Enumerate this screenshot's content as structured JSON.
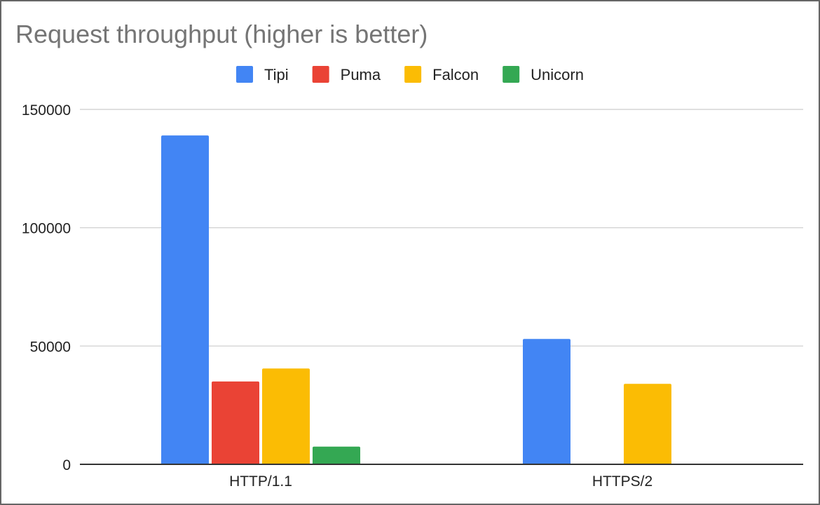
{
  "chart_data": {
    "type": "bar",
    "title": "Request throughput (higher is better)",
    "xlabel": "",
    "ylabel": "",
    "categories": [
      "HTTP/1.1",
      "HTTPS/2"
    ],
    "series": [
      {
        "name": "Tipi",
        "color": "#4285F4",
        "values": [
          139000,
          53000
        ]
      },
      {
        "name": "Puma",
        "color": "#EA4335",
        "values": [
          35000,
          null
        ]
      },
      {
        "name": "Falcon",
        "color": "#FBBC04",
        "values": [
          40500,
          34000
        ]
      },
      {
        "name": "Unicorn",
        "color": "#34A853",
        "values": [
          7500,
          null
        ]
      }
    ],
    "ylim": [
      0,
      150000
    ],
    "yticks": [
      "0",
      "50000",
      "100000",
      "150000"
    ],
    "grid": true,
    "legend_position": "top"
  }
}
